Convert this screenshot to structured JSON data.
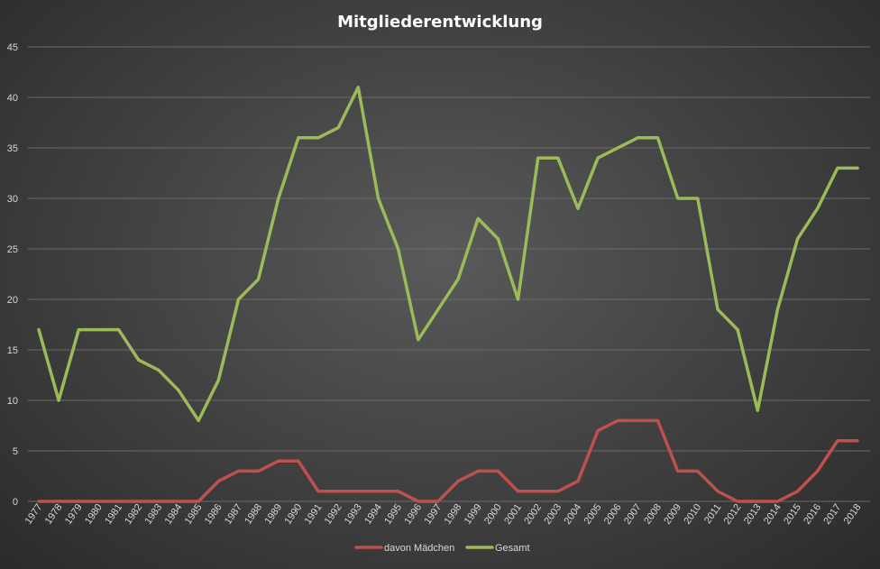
{
  "chart_data": {
    "type": "line",
    "title": "Mitgliederentwicklung",
    "xlabel": "",
    "ylabel": "",
    "ylim": [
      0,
      45
    ],
    "yticks": [
      0,
      5,
      10,
      15,
      20,
      25,
      30,
      35,
      40,
      45
    ],
    "grid": true,
    "legend_position": "bottom",
    "x": [
      "1977",
      "1978",
      "1979",
      "1980",
      "1981",
      "1982",
      "1983",
      "1984",
      "1985",
      "1986",
      "1987",
      "1988",
      "1989",
      "1990",
      "1991",
      "1992",
      "1993",
      "1994",
      "1995",
      "1996",
      "1997",
      "1998",
      "1999",
      "2000",
      "2001",
      "2002",
      "2003",
      "2004",
      "2005",
      "2006",
      "2007",
      "2008",
      "2009",
      "2010",
      "2011",
      "2012",
      "2013",
      "2014",
      "2015",
      "2016",
      "2017",
      "2018"
    ],
    "series": [
      {
        "name": "davon Mädchen",
        "color": "#c0504d",
        "values": [
          0,
          0,
          0,
          0,
          0,
          0,
          0,
          0,
          0,
          2,
          3,
          3,
          4,
          4,
          1,
          1,
          1,
          1,
          1,
          0,
          0,
          2,
          3,
          3,
          1,
          1,
          1,
          2,
          7,
          8,
          8,
          8,
          3,
          3,
          1,
          0,
          0,
          0,
          1,
          3,
          6,
          6
        ]
      },
      {
        "name": "Gesamt",
        "color": "#9bbb59",
        "values": [
          17,
          10,
          17,
          17,
          17,
          14,
          13,
          11,
          8,
          12,
          20,
          22,
          30,
          36,
          36,
          37,
          41,
          30,
          25,
          16,
          19,
          22,
          28,
          26,
          20,
          34,
          34,
          29,
          34,
          35,
          36,
          36,
          30,
          30,
          19,
          17,
          9,
          19,
          26,
          29,
          33,
          33
        ]
      }
    ]
  }
}
